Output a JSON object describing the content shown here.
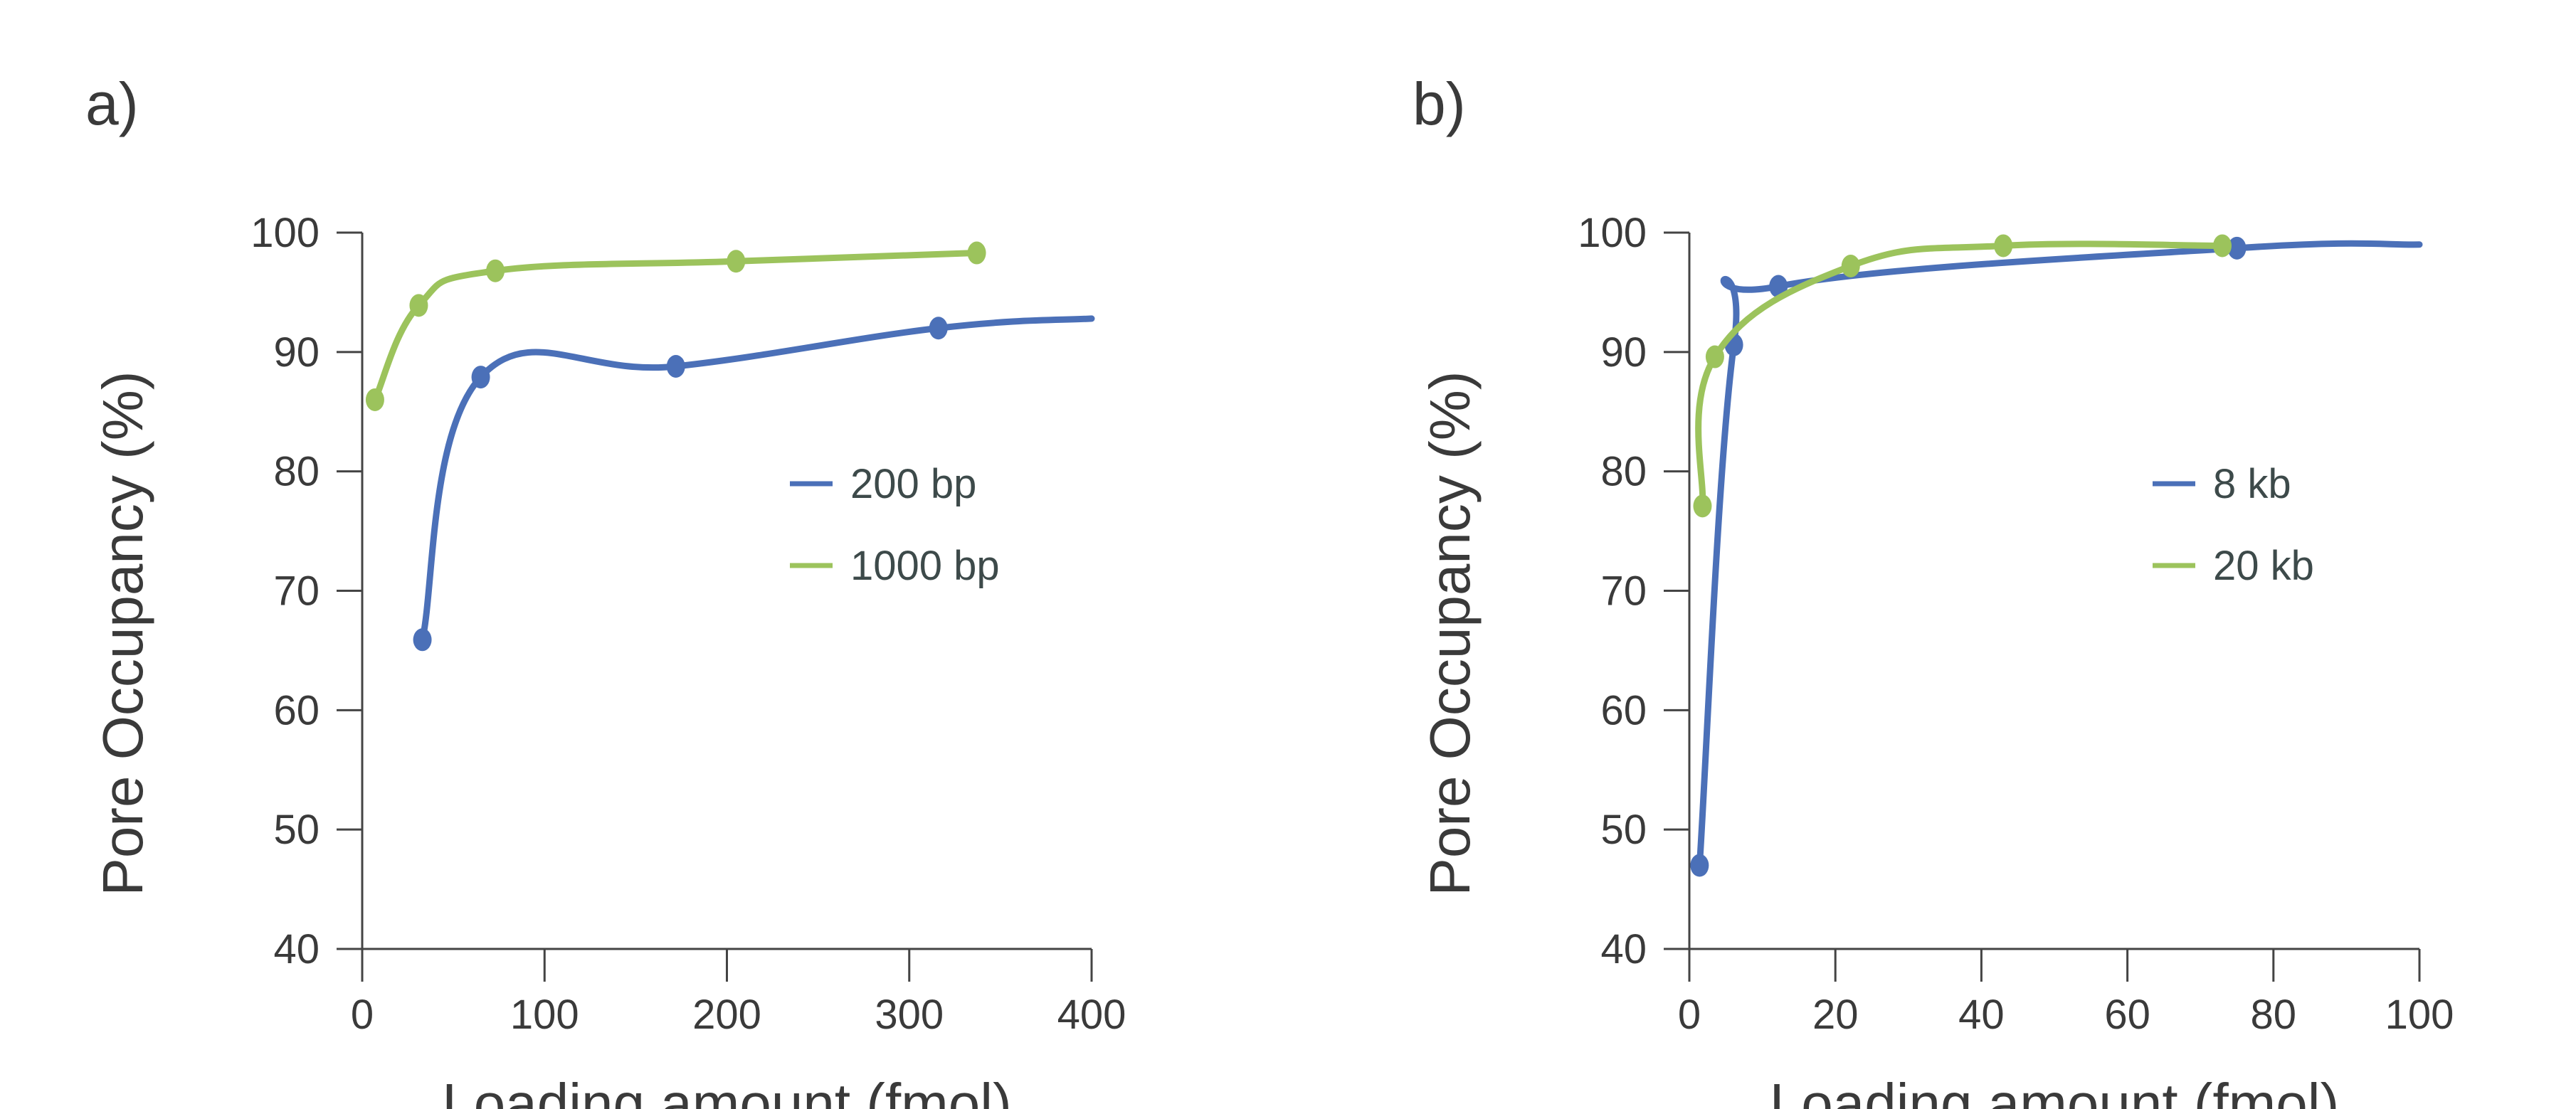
{
  "chart_data": [
    {
      "type": "line",
      "panel_label": "a)",
      "xlabel": "Loading amount (fmol)",
      "ylabel": "Pore Occupancy (%)",
      "xlim": [
        0,
        400
      ],
      "ylim": [
        40,
        100
      ],
      "xticks": [
        "0",
        "100",
        "200",
        "300",
        "400"
      ],
      "yticks": [
        "40",
        "50",
        "60",
        "70",
        "80",
        "90",
        "100"
      ],
      "legend_position": "right",
      "grid": false,
      "smoothed": true,
      "series": [
        {
          "name": "200 bp",
          "color": "#4b70b8",
          "x": [
            33,
            65,
            172,
            316
          ],
          "y": [
            65.9,
            87.9,
            88.8,
            92.0
          ],
          "line_end": {
            "x": 400,
            "y": 92.8
          }
        },
        {
          "name": "1000 bp",
          "color": "#9cc35c",
          "x": [
            7,
            31,
            73,
            205,
            337
          ],
          "y": [
            86.0,
            93.9,
            96.8,
            97.6,
            98.3
          ]
        }
      ]
    },
    {
      "type": "line",
      "panel_label": "b)",
      "xlabel": "Loading amount (fmol)",
      "ylabel": "Pore Occupancy (%)",
      "xlim": [
        0,
        100
      ],
      "ylim": [
        40,
        100
      ],
      "xticks": [
        "0",
        "20",
        "40",
        "60",
        "80",
        "100"
      ],
      "yticks": [
        "40",
        "50",
        "60",
        "70",
        "80",
        "90",
        "100"
      ],
      "legend_position": "right",
      "grid": false,
      "smoothed": true,
      "series": [
        {
          "name": "8 kb",
          "color": "#4b70b8",
          "x": [
            1.4,
            6.1,
            12.2,
            75
          ],
          "y": [
            47.0,
            90.6,
            95.5,
            98.7
          ],
          "line_end": {
            "x": 100,
            "y": 99.0
          }
        },
        {
          "name": "20 kb",
          "color": "#9cc35c",
          "x": [
            1.8,
            3.5,
            22.1,
            43,
            73
          ],
          "y": [
            77.1,
            89.6,
            97.2,
            98.9,
            98.9
          ]
        }
      ]
    }
  ]
}
